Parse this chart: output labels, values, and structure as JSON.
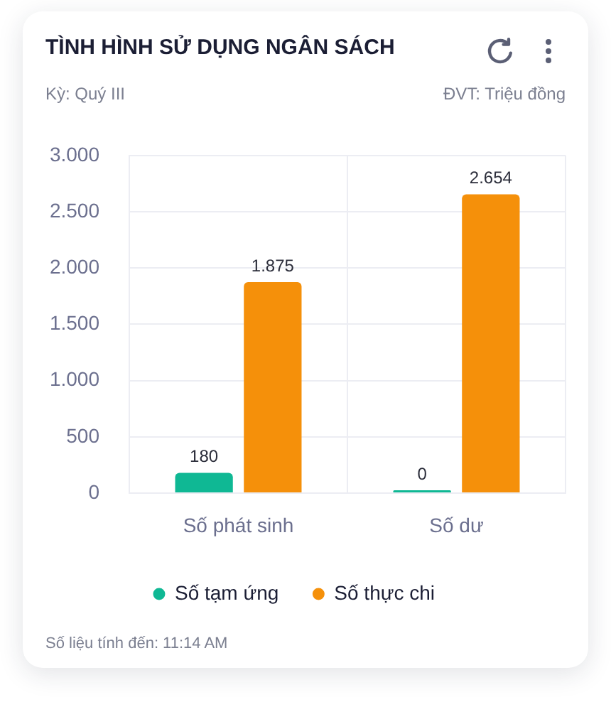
{
  "chart_data": {
    "type": "bar",
    "title": "TÌNH HÌNH SỬ DỤNG NGÂN SÁCH",
    "subtitle": "Kỳ: Quý III",
    "annotations": [
      "ĐVT: Triệu đồng",
      "Số liệu tính đến: 11:14 AM"
    ],
    "categories": [
      "Số phát sinh",
      "Số dư"
    ],
    "series": [
      {
        "name": "Số tạm ứng",
        "color": "#0fb894",
        "values": [
          180,
          0
        ],
        "value_labels": [
          "180",
          "0"
        ]
      },
      {
        "name": "Số thực chi",
        "color": "#f5900a",
        "values": [
          1875,
          2654
        ],
        "value_labels": [
          "1.875",
          "2.654"
        ]
      }
    ],
    "ylim": [
      0,
      3000
    ],
    "yticks": [
      0,
      500,
      {
        "value": 1000,
        "label": "1.000"
      },
      {
        "value": 1500,
        "label": "1.500"
      },
      {
        "value": 2000,
        "label": "2.000"
      },
      {
        "value": 2500,
        "label": "2.500"
      },
      {
        "value": 3000,
        "label": "3.000"
      }
    ],
    "grid": true,
    "legend": "bottom"
  }
}
